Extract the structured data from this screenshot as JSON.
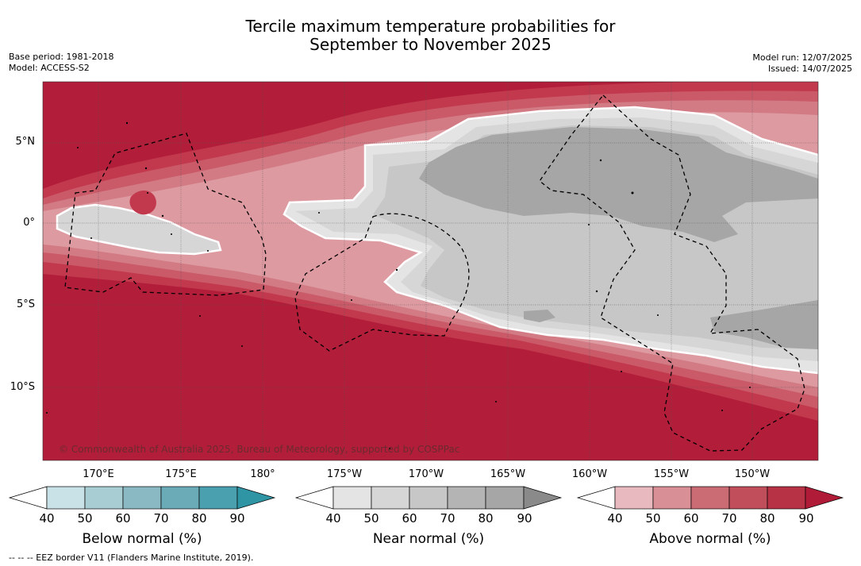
{
  "title": {
    "line1": "Tercile maximum temperature probabilities for",
    "line2": "September to November 2025"
  },
  "meta": {
    "base_period": "Base period: 1981-2018",
    "model": "Model: ACCESS-S2",
    "model_run": "Model run: 12/07/2025",
    "issued": "Issued: 14/07/2025"
  },
  "map": {
    "lat_labels": [
      "5°N",
      "0°",
      "5°S",
      "10°S"
    ],
    "lon_labels": [
      "170°E",
      "175°E",
      "180°",
      "175°W",
      "170°W",
      "165°W",
      "160°W",
      "155°W",
      "150°W"
    ],
    "copyright": "© Commonwealth of Australia 2025, Bureau of Meteorology, supported by COSPPac",
    "colors": {
      "above_max": "#b21e3a",
      "above_80": "#c2384d",
      "above_70": "#ca5a68",
      "above_60": "#d27b85",
      "above_50": "#de9aa1",
      "near_40": "#e4e4e4",
      "near_50": "#d6d6d6",
      "near_60": "#c7c7c7",
      "near_70": "#a6a6a6",
      "near_80": "#8a8a8a"
    }
  },
  "colorbars": [
    {
      "name": "below",
      "title": "Below normal (%)",
      "ticks": [
        "40",
        "50",
        "60",
        "70",
        "80",
        "90"
      ],
      "colors": [
        "#ffffff",
        "#c9e2e8",
        "#a8cdd3",
        "#8ab9c3",
        "#6babb8",
        "#4aa0ae",
        "#2f94a4"
      ]
    },
    {
      "name": "near",
      "title": "Near normal (%)",
      "ticks": [
        "40",
        "50",
        "60",
        "70",
        "80",
        "90"
      ],
      "colors": [
        "#ffffff",
        "#e4e4e4",
        "#d6d6d6",
        "#c7c7c7",
        "#b4b4b4",
        "#a6a6a6",
        "#8a8a8a"
      ]
    },
    {
      "name": "above",
      "title": "Above normal (%)",
      "ticks": [
        "40",
        "50",
        "60",
        "70",
        "80",
        "90"
      ],
      "colors": [
        "#ffffff",
        "#e8b9be",
        "#d98f96",
        "#cb6b74",
        "#c04f5b",
        "#b73244",
        "#b01b37"
      ]
    }
  ],
  "footer": "--  --  -- EEZ border V11 (Flanders Marine Institute, 2019)."
}
